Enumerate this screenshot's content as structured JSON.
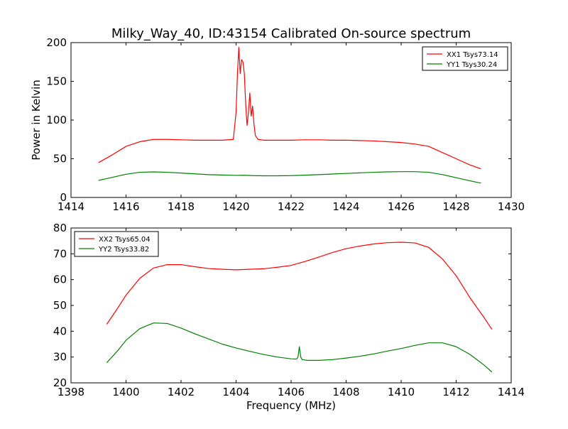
{
  "figure": {
    "title": "Milky_Way_40, ID:43154 Calibrated On-source spectrum"
  },
  "colors": {
    "xx": "#ff0000",
    "yy": "#008000",
    "axes": "#000000",
    "background": "#ffffff"
  },
  "chart_data": [
    {
      "type": "line",
      "title": "Milky_Way_40, ID:43154 Calibrated On-source spectrum",
      "xlabel": "",
      "ylabel": "Power in Kelvin",
      "xlim": [
        1414,
        1430
      ],
      "ylim": [
        0,
        200
      ],
      "xticks": [
        1414,
        1416,
        1418,
        1420,
        1422,
        1424,
        1426,
        1428,
        1430
      ],
      "yticks": [
        0,
        50,
        100,
        150,
        200
      ],
      "grid": false,
      "legend_position": "top-right",
      "series": [
        {
          "name": "XX1 Tsys73.14",
          "color": "#ff0000",
          "x": [
            1415.0,
            1415.5,
            1416.0,
            1416.5,
            1417.0,
            1417.5,
            1418.0,
            1418.5,
            1419.0,
            1419.5,
            1419.9,
            1420.0,
            1420.05,
            1420.1,
            1420.15,
            1420.2,
            1420.25,
            1420.3,
            1420.35,
            1420.4,
            1420.45,
            1420.5,
            1420.55,
            1420.6,
            1420.65,
            1420.7,
            1420.8,
            1421.0,
            1421.5,
            1422.0,
            1422.5,
            1423.0,
            1423.5,
            1424.0,
            1424.5,
            1425.0,
            1425.5,
            1426.0,
            1426.5,
            1427.0,
            1427.5,
            1428.0,
            1428.5,
            1428.9
          ],
          "values": [
            45,
            55,
            66,
            72,
            75,
            75,
            74.5,
            74,
            74,
            74,
            75,
            110,
            160,
            194,
            160,
            178,
            175,
            160,
            120,
            93,
            110,
            135,
            105,
            118,
            95,
            80,
            75,
            74,
            74,
            74,
            74.5,
            74.5,
            74,
            74,
            73.5,
            73,
            72,
            71,
            69,
            66,
            58,
            50,
            42,
            37
          ]
        },
        {
          "name": "YY1 Tsys30.24",
          "color": "#008000",
          "x": [
            1415.0,
            1415.5,
            1416.0,
            1416.5,
            1417.0,
            1417.5,
            1418.0,
            1418.5,
            1419.0,
            1419.5,
            1420.0,
            1420.3,
            1420.6,
            1421.0,
            1421.5,
            1422.0,
            1422.5,
            1423.0,
            1423.5,
            1424.0,
            1424.5,
            1425.0,
            1425.5,
            1426.0,
            1426.5,
            1427.0,
            1427.5,
            1428.0,
            1428.5,
            1428.9
          ],
          "values": [
            22,
            26,
            30,
            32.5,
            33,
            32.5,
            31.5,
            30.5,
            29.5,
            29,
            28.5,
            28.7,
            28.2,
            28,
            28,
            28.2,
            28.8,
            29.5,
            30.3,
            31,
            31.8,
            32.5,
            33,
            33.3,
            33.3,
            32.5,
            29.5,
            25.5,
            21.5,
            18.5
          ]
        }
      ]
    },
    {
      "type": "line",
      "title": "",
      "xlabel": "Frequency (MHz)",
      "ylabel": "",
      "xlim": [
        1398,
        1414
      ],
      "ylim": [
        20,
        80
      ],
      "xticks": [
        1398,
        1400,
        1402,
        1404,
        1406,
        1408,
        1410,
        1412,
        1414
      ],
      "yticks": [
        20,
        30,
        40,
        50,
        60,
        70,
        80
      ],
      "grid": false,
      "legend_position": "top-left",
      "series": [
        {
          "name": "XX2 Tsys65.04",
          "color": "#ff0000",
          "x": [
            1399.3,
            1399.7,
            1400.0,
            1400.5,
            1401.0,
            1401.5,
            1402.0,
            1402.5,
            1403.0,
            1403.5,
            1404.0,
            1404.5,
            1405.0,
            1405.5,
            1406.0,
            1406.5,
            1407.0,
            1407.5,
            1408.0,
            1408.5,
            1409.0,
            1409.5,
            1410.0,
            1410.5,
            1411.0,
            1411.5,
            1412.0,
            1412.5,
            1413.0,
            1413.3
          ],
          "values": [
            42.7,
            49,
            54,
            60.5,
            64.5,
            65.8,
            65.8,
            65,
            64.3,
            64,
            63.8,
            64,
            64.2,
            64.8,
            65.5,
            67,
            68.7,
            70.5,
            72,
            73,
            73.8,
            74.3,
            74.5,
            74.2,
            72.5,
            68,
            61.5,
            53,
            45.5,
            40.7
          ]
        },
        {
          "name": "YY2 Tsys33.82",
          "color": "#008000",
          "x": [
            1399.3,
            1399.7,
            1400.0,
            1400.5,
            1401.0,
            1401.5,
            1402.0,
            1402.5,
            1403.0,
            1403.5,
            1404.0,
            1404.5,
            1405.0,
            1405.5,
            1406.0,
            1406.2,
            1406.25,
            1406.3,
            1406.35,
            1406.4,
            1406.6,
            1407.0,
            1407.5,
            1408.0,
            1408.5,
            1409.0,
            1409.5,
            1410.0,
            1410.5,
            1411.0,
            1411.5,
            1412.0,
            1412.5,
            1413.0,
            1413.3
          ],
          "values": [
            27.8,
            32.5,
            36.5,
            41,
            43.2,
            43,
            41.2,
            39,
            37,
            35,
            33.5,
            32.2,
            31,
            30,
            29.3,
            29.2,
            30,
            34,
            30,
            29,
            28.7,
            28.7,
            29,
            29.6,
            30.3,
            31.2,
            32.3,
            33.3,
            34.5,
            35.5,
            35.5,
            34,
            31,
            27,
            24.2
          ]
        }
      ]
    }
  ]
}
